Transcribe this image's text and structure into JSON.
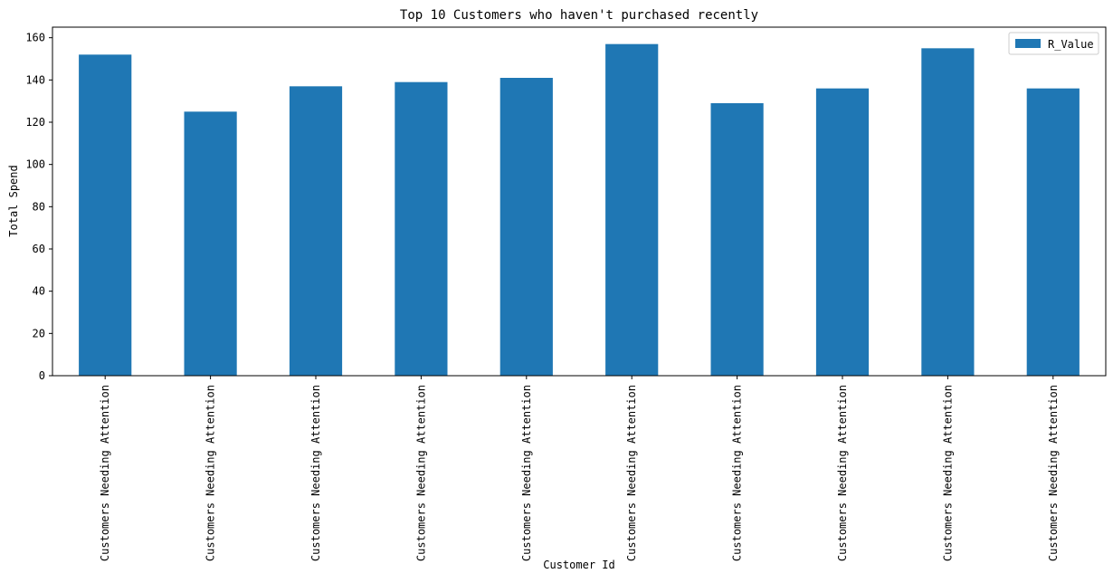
{
  "chart_data": {
    "type": "bar",
    "title": "Top 10 Customers who haven't purchased recently",
    "xlabel": "Customer Id",
    "ylabel": "Total Spend",
    "categories": [
      "Customers Needing Attention",
      "Customers Needing Attention",
      "Customers Needing Attention",
      "Customers Needing Attention",
      "Customers Needing Attention",
      "Customers Needing Attention",
      "Customers Needing Attention",
      "Customers Needing Attention",
      "Customers Needing Attention",
      "Customers Needing Attention"
    ],
    "series": [
      {
        "name": "R_Value",
        "values": [
          152,
          125,
          137,
          139,
          141,
          157,
          129,
          136,
          155,
          136
        ],
        "color": "#1f77b4"
      }
    ],
    "ylim": [
      0,
      165
    ],
    "yticks": [
      0,
      20,
      40,
      60,
      80,
      100,
      120,
      140,
      160
    ],
    "grid": false,
    "legend_position": "top-right"
  }
}
